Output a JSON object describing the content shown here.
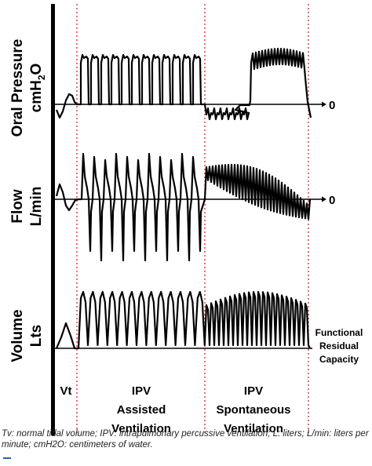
{
  "chart_data": {
    "type": "line",
    "panels": [
      {
        "ylabel_line1": "Oral Pressure",
        "ylabel_line2": "cmH",
        "ylabel_sub": "2",
        "ylabel_tail": "O",
        "baseline_label": "0"
      },
      {
        "ylabel_line1": "Flow",
        "ylabel_line2": "L/min",
        "baseline_label": "0"
      },
      {
        "ylabel_line1": "Volume",
        "ylabel_line2": "Lts",
        "baseline_label": ""
      }
    ],
    "right_annotation": [
      "Functional",
      "Residual",
      "Capacity"
    ],
    "phases": [
      {
        "lines": [
          "Vt"
        ]
      },
      {
        "lines": [
          "IPV",
          "Assisted",
          "Ventilation"
        ]
      },
      {
        "lines": [
          "IPV",
          "Spontaneous",
          "Ventilation"
        ]
      }
    ],
    "phase_boundary_color": "#e0202a",
    "trace_color": "#000000"
  },
  "caption": {
    "text": "Tv: normal tidal volume; IPV: intrapulmonary percussive ventilation; L: liters; L/min: liters per minute; cmH2O: centimeters of water."
  }
}
